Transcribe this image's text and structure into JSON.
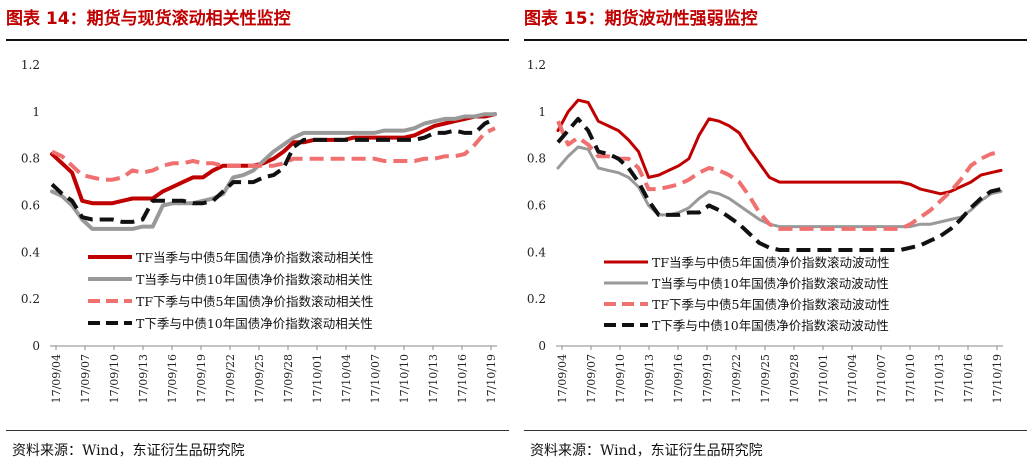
{
  "figures": [
    {
      "title": "图表 14：期货与现货滚动相关性监控",
      "source": "资料来源：Wind，东证衍生品研究院"
    },
    {
      "title": "图表 15：期货波动性强弱监控",
      "source": "资料来源：Wind，东证衍生品研究院"
    }
  ],
  "chart_data": [
    {
      "type": "line",
      "title": "期货与现货滚动相关性监控",
      "x_labels": [
        "17/09/04",
        "17/09/07",
        "17/09/10",
        "17/09/13",
        "17/09/16",
        "17/09/19",
        "17/09/22",
        "17/09/25",
        "17/09/28",
        "17/10/01",
        "17/10/04",
        "17/10/07",
        "17/10/10",
        "17/10/13",
        "17/10/16",
        "17/10/19"
      ],
      "ylim": [
        0,
        1.2
      ],
      "yticks": [
        "0",
        "0.2",
        "0.4",
        "0.6",
        "0.8",
        "1",
        "1.2"
      ],
      "legend_position": "center-left",
      "series": [
        {
          "name": "TF当季与中债5年国债净价指数滚动相关性",
          "color": "#c00000",
          "style": "solid",
          "width": 4,
          "values": [
            0.82,
            0.78,
            0.74,
            0.62,
            0.61,
            0.61,
            0.61,
            0.62,
            0.63,
            0.63,
            0.63,
            0.66,
            0.68,
            0.7,
            0.72,
            0.72,
            0.75,
            0.77,
            0.77,
            0.77,
            0.77,
            0.78,
            0.8,
            0.83,
            0.87,
            0.87,
            0.88,
            0.88,
            0.88,
            0.88,
            0.89,
            0.89,
            0.89,
            0.89,
            0.89,
            0.89,
            0.9,
            0.92,
            0.94,
            0.95,
            0.96,
            0.97,
            0.98,
            0.98,
            0.99
          ]
        },
        {
          "name": "T当季与中债10年国债净价指数滚动相关性",
          "color": "#999999",
          "style": "solid",
          "width": 4,
          "values": [
            0.66,
            0.64,
            0.6,
            0.54,
            0.5,
            0.5,
            0.5,
            0.5,
            0.5,
            0.51,
            0.51,
            0.6,
            0.61,
            0.61,
            0.61,
            0.62,
            0.63,
            0.65,
            0.72,
            0.73,
            0.75,
            0.79,
            0.83,
            0.86,
            0.89,
            0.91,
            0.91,
            0.91,
            0.91,
            0.91,
            0.91,
            0.91,
            0.91,
            0.92,
            0.92,
            0.92,
            0.93,
            0.95,
            0.96,
            0.97,
            0.97,
            0.98,
            0.98,
            0.99,
            0.99
          ]
        },
        {
          "name": "TF下季与中债5年国债净价指数滚动相关性",
          "color": "#f07070",
          "style": "dash",
          "width": 4,
          "values": [
            0.83,
            0.81,
            0.77,
            0.73,
            0.72,
            0.71,
            0.71,
            0.72,
            0.75,
            0.74,
            0.75,
            0.77,
            0.78,
            0.78,
            0.79,
            0.78,
            0.78,
            0.77,
            0.77,
            0.77,
            0.77,
            0.77,
            0.77,
            0.78,
            0.8,
            0.8,
            0.8,
            0.8,
            0.8,
            0.8,
            0.8,
            0.8,
            0.8,
            0.79,
            0.79,
            0.79,
            0.79,
            0.8,
            0.8,
            0.81,
            0.81,
            0.82,
            0.86,
            0.91,
            0.93
          ]
        },
        {
          "name": "T下季与中债10年国债净价指数滚动相关性",
          "color": "#111111",
          "style": "dash",
          "width": 4,
          "values": [
            0.69,
            0.65,
            0.62,
            0.55,
            0.54,
            0.54,
            0.54,
            0.53,
            0.53,
            0.54,
            0.62,
            0.62,
            0.62,
            0.62,
            0.61,
            0.61,
            0.62,
            0.66,
            0.7,
            0.7,
            0.7,
            0.72,
            0.73,
            0.76,
            0.85,
            0.88,
            0.88,
            0.88,
            0.88,
            0.88,
            0.88,
            0.88,
            0.88,
            0.88,
            0.88,
            0.88,
            0.88,
            0.89,
            0.91,
            0.91,
            0.92,
            0.91,
            0.91,
            0.95,
            0.97
          ]
        }
      ]
    },
    {
      "type": "line",
      "title": "期货波动性强弱监控",
      "x_labels": [
        "17/09/04",
        "17/09/07",
        "17/09/10",
        "17/09/13",
        "17/09/16",
        "17/09/19",
        "17/09/22",
        "17/09/25",
        "17/09/28",
        "17/10/01",
        "17/10/04",
        "17/10/07",
        "17/10/10",
        "17/10/13",
        "17/10/16",
        "17/10/19"
      ],
      "ylim": [
        0,
        1.2
      ],
      "yticks": [
        "0",
        "0.2",
        "0.4",
        "0.6",
        "0.8",
        "1",
        "1.2"
      ],
      "legend_position": "bottom-center",
      "series": [
        {
          "name": "TF当季与中债5年国债净价指数滚动波动性",
          "color": "#c00000",
          "style": "solid",
          "width": 3,
          "values": [
            0.92,
            1.0,
            1.05,
            1.04,
            0.96,
            0.94,
            0.92,
            0.88,
            0.83,
            0.72,
            0.73,
            0.75,
            0.77,
            0.8,
            0.9,
            0.97,
            0.96,
            0.94,
            0.91,
            0.84,
            0.78,
            0.72,
            0.7,
            0.7,
            0.7,
            0.7,
            0.7,
            0.7,
            0.7,
            0.7,
            0.7,
            0.7,
            0.7,
            0.7,
            0.7,
            0.69,
            0.67,
            0.66,
            0.65,
            0.66,
            0.68,
            0.7,
            0.73,
            0.74,
            0.75
          ]
        },
        {
          "name": "T当季与中债10年国债净价指数滚动波动性",
          "color": "#999999",
          "style": "solid",
          "width": 3,
          "values": [
            0.76,
            0.81,
            0.85,
            0.84,
            0.76,
            0.75,
            0.74,
            0.72,
            0.68,
            0.6,
            0.56,
            0.56,
            0.57,
            0.59,
            0.63,
            0.66,
            0.65,
            0.63,
            0.6,
            0.57,
            0.54,
            0.52,
            0.51,
            0.51,
            0.51,
            0.51,
            0.51,
            0.51,
            0.51,
            0.51,
            0.51,
            0.51,
            0.51,
            0.51,
            0.51,
            0.51,
            0.52,
            0.52,
            0.53,
            0.54,
            0.55,
            0.58,
            0.62,
            0.65,
            0.66
          ]
        },
        {
          "name": "TF下季与中债5年国债净价指数滚动波动性",
          "color": "#f07070",
          "style": "dash",
          "width": 4,
          "values": [
            0.96,
            0.86,
            0.89,
            0.86,
            0.81,
            0.81,
            0.8,
            0.8,
            0.76,
            0.67,
            0.67,
            0.68,
            0.69,
            0.71,
            0.74,
            0.76,
            0.75,
            0.73,
            0.7,
            0.64,
            0.57,
            0.52,
            0.5,
            0.5,
            0.5,
            0.5,
            0.5,
            0.5,
            0.5,
            0.5,
            0.5,
            0.5,
            0.5,
            0.5,
            0.5,
            0.52,
            0.55,
            0.58,
            0.62,
            0.66,
            0.71,
            0.77,
            0.8,
            0.82,
            0.83
          ]
        },
        {
          "name": "T下季与中债10年国债净价指数滚动波动性",
          "color": "#111111",
          "style": "dash",
          "width": 4,
          "values": [
            0.87,
            0.92,
            0.97,
            0.92,
            0.83,
            0.82,
            0.8,
            0.76,
            0.7,
            0.62,
            0.56,
            0.56,
            0.56,
            0.57,
            0.57,
            0.6,
            0.58,
            0.55,
            0.52,
            0.48,
            0.44,
            0.42,
            0.41,
            0.41,
            0.41,
            0.41,
            0.41,
            0.41,
            0.41,
            0.41,
            0.41,
            0.41,
            0.41,
            0.41,
            0.41,
            0.42,
            0.43,
            0.45,
            0.47,
            0.5,
            0.54,
            0.59,
            0.63,
            0.66,
            0.67
          ]
        }
      ]
    }
  ]
}
